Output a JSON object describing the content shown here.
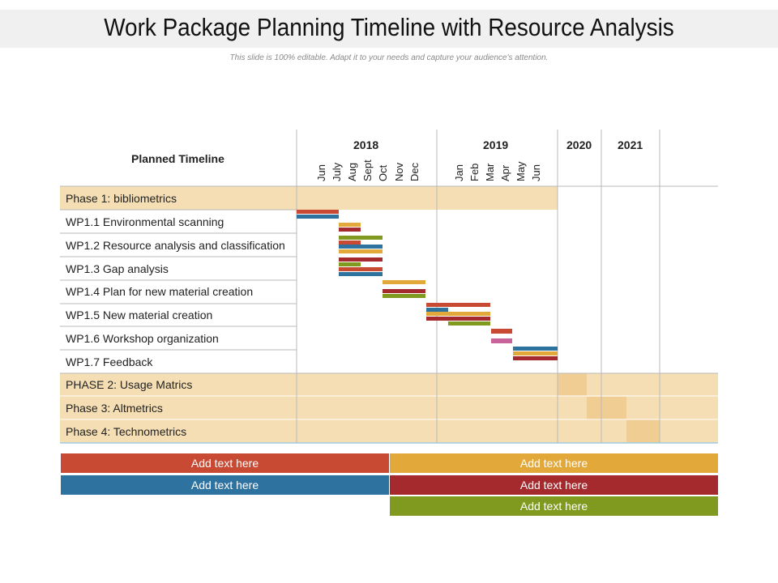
{
  "header": {
    "title": "Work Package Planning Timeline with Resource Analysis",
    "subtitle": "This slide is 100% editable. Adapt it to your needs and capture your audience's attention."
  },
  "table": {
    "corner_label": "Planned Timeline",
    "years": [
      "2018",
      "2019",
      "2020",
      "2021"
    ],
    "months_2018": [
      "Jun",
      "July",
      "Aug",
      "Sept",
      "Oct",
      "Nov",
      "Dec"
    ],
    "months_2019": [
      "Jan",
      "Feb",
      "Mar",
      "Apr",
      "May",
      "Jun"
    ],
    "rows": [
      "Phase 1: bibliometrics",
      "WP1.1 Environmental scanning",
      "WP1.2 Resource analysis and classification",
      "WP1.3 Gap analysis",
      "WP1.4 Plan for new material creation",
      "WP1.5 New material creation",
      "WP1.6 Workshop organization",
      "WP1.7 Feedback",
      "PHASE 2: Usage Matrics",
      "Phase 3: Altmetrics",
      "Phase 4: Technometrics"
    ]
  },
  "colors": {
    "red": "#c84a32",
    "blue": "#2e72a0",
    "gold": "#e2a93a",
    "maroon": "#a52a2e",
    "green": "#7f9a1e",
    "pink": "#c8649a",
    "phase_fill": "#f5deb3",
    "phase_highlight": "#efcd93"
  },
  "legend": [
    {
      "label": "Add text here",
      "color": "#c84a32"
    },
    {
      "label": "Add text here",
      "color": "#e2a93a"
    },
    {
      "label": "Add text here",
      "color": "#2e72a0"
    },
    {
      "label": "Add text here",
      "color": "#a52a2e"
    },
    {
      "label": "Add text here",
      "color": "#7f9a1e"
    }
  ]
}
